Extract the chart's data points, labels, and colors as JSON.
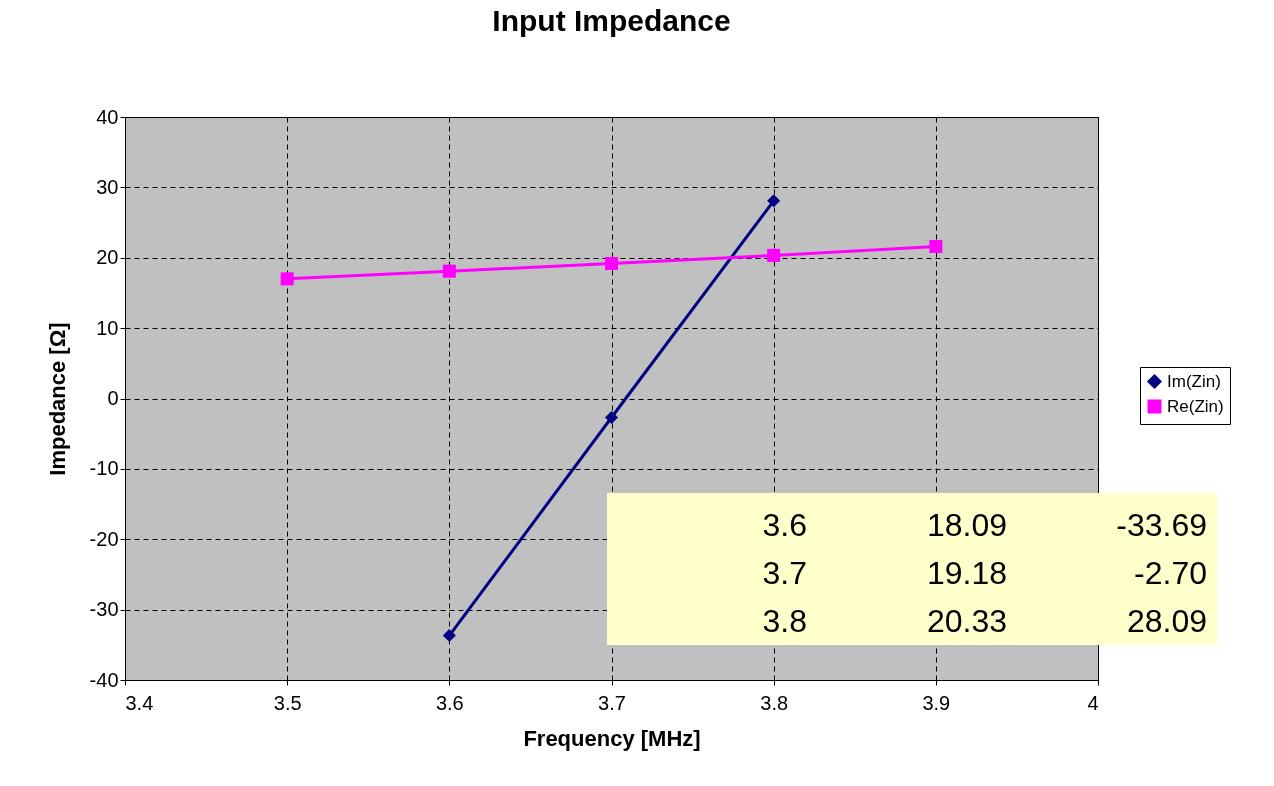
{
  "chart_data": {
    "type": "line",
    "title": "Input Impedance",
    "xlabel": "Frequency [MHz]",
    "ylabel": "Impedance [Ω]",
    "xlim": [
      3.4,
      4
    ],
    "xticks": [
      3.4,
      3.5,
      3.6,
      3.7,
      3.8,
      3.9,
      4
    ],
    "ylim": [
      -40,
      40
    ],
    "yticks": [
      -40,
      -30,
      -20,
      -10,
      0,
      10,
      20,
      30,
      40
    ],
    "grid": true,
    "legend": "right",
    "series": [
      {
        "name": "Im(Zin)",
        "color": "#000080",
        "marker": "diamond",
        "x": [
          3.6,
          3.7,
          3.8
        ],
        "values": [
          -33.69,
          -2.7,
          28.09
        ]
      },
      {
        "name": "Re(Zin)",
        "color": "#ff00ff",
        "marker": "square",
        "x": [
          3.5,
          3.6,
          3.7,
          3.8,
          3.9
        ],
        "values": [
          17.0,
          18.09,
          19.18,
          20.33,
          21.6
        ]
      }
    ],
    "annotations": [
      "3.6 18.09 -33.69",
      "3.7 19.18 -2.70",
      "3.8 20.33 28.09"
    ]
  }
}
